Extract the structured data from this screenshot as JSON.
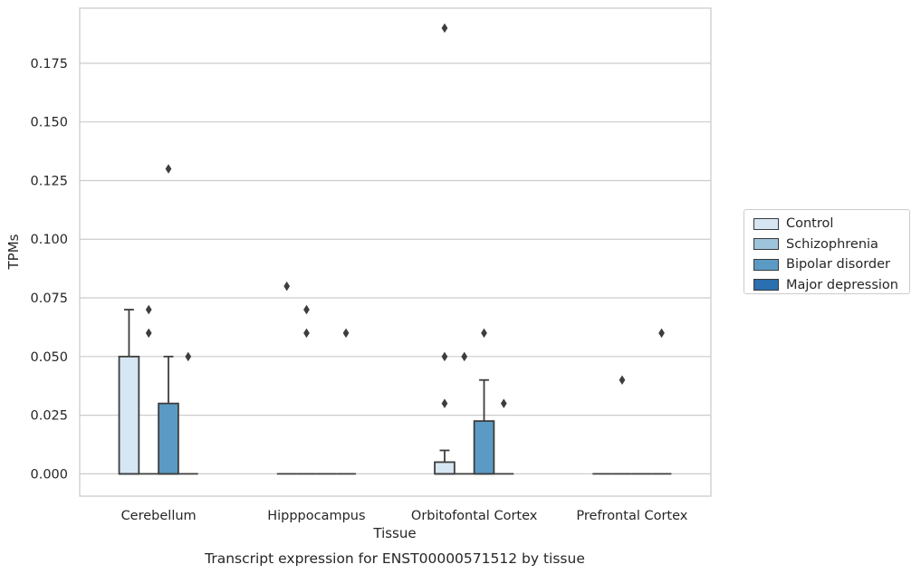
{
  "chart_data": {
    "type": "box",
    "title": "Transcript expression for ENST00000571512 by tissue",
    "xlabel": "Tissue",
    "ylabel": "TPMs",
    "ylim": [
      -0.0095,
      0.1985
    ],
    "yticks": [
      "0.000",
      "0.025",
      "0.050",
      "0.075",
      "0.100",
      "0.125",
      "0.150",
      "0.175"
    ],
    "ytick_values": [
      0,
      0.025,
      0.05,
      0.075,
      0.1,
      0.125,
      0.15,
      0.175
    ],
    "grid": true,
    "legend_placement": "right-outside",
    "categories": [
      "Cerebellum",
      "Hipppocampus",
      "Orbitofontal Cortex",
      "Prefrontal Cortex"
    ],
    "series": [
      {
        "name": "Control",
        "color": "#d6e6f3",
        "boxes": [
          {
            "q1": 0,
            "median": 0,
            "q3": 0.05,
            "whisker_low": 0,
            "whisker_high": 0.07,
            "outliers": []
          },
          {
            "q1": 0,
            "median": 0,
            "q3": 0,
            "whisker_low": 0,
            "whisker_high": 0,
            "outliers": [
              0.08
            ]
          },
          {
            "q1": 0,
            "median": 0,
            "q3": 0.005,
            "whisker_low": 0,
            "whisker_high": 0.01,
            "outliers": [
              0.03,
              0.05,
              0.19
            ]
          },
          {
            "q1": 0,
            "median": 0,
            "q3": 0,
            "whisker_low": 0,
            "whisker_high": 0,
            "outliers": []
          }
        ]
      },
      {
        "name": "Schizophrenia",
        "color": "#9ec4dc",
        "boxes": [
          {
            "q1": 0,
            "median": 0,
            "q3": 0,
            "whisker_low": 0,
            "whisker_high": 0,
            "outliers": [
              0.06,
              0.07
            ]
          },
          {
            "q1": 0,
            "median": 0,
            "q3": 0,
            "whisker_low": 0,
            "whisker_high": 0,
            "outliers": [
              0.06,
              0.07
            ]
          },
          {
            "q1": 0,
            "median": 0,
            "q3": 0,
            "whisker_low": 0,
            "whisker_high": 0,
            "outliers": [
              0.05
            ]
          },
          {
            "q1": 0,
            "median": 0,
            "q3": 0,
            "whisker_low": 0,
            "whisker_high": 0,
            "outliers": [
              0.04
            ]
          }
        ]
      },
      {
        "name": "Bipolar disorder",
        "color": "#5b9ac5",
        "boxes": [
          {
            "q1": 0,
            "median": 0,
            "q3": 0.03,
            "whisker_low": 0,
            "whisker_high": 0.05,
            "outliers": [
              0.13
            ]
          },
          {
            "q1": 0,
            "median": 0,
            "q3": 0,
            "whisker_low": 0,
            "whisker_high": 0,
            "outliers": []
          },
          {
            "q1": 0,
            "median": 0,
            "q3": 0.0225,
            "whisker_low": 0,
            "whisker_high": 0.04,
            "outliers": [
              0.06
            ]
          },
          {
            "q1": 0,
            "median": 0,
            "q3": 0,
            "whisker_low": 0,
            "whisker_high": 0,
            "outliers": []
          }
        ]
      },
      {
        "name": "Major depression",
        "color": "#2a6faf",
        "boxes": [
          {
            "q1": 0,
            "median": 0,
            "q3": 0,
            "whisker_low": 0,
            "whisker_high": 0,
            "outliers": [
              0.05
            ]
          },
          {
            "q1": 0,
            "median": 0,
            "q3": 0,
            "whisker_low": 0,
            "whisker_high": 0,
            "outliers": [
              0.06
            ]
          },
          {
            "q1": 0,
            "median": 0,
            "q3": 0,
            "whisker_low": 0,
            "whisker_high": 0,
            "outliers": [
              0.03
            ]
          },
          {
            "q1": 0,
            "median": 0,
            "q3": 0,
            "whisker_low": 0,
            "whisker_high": 0,
            "outliers": [
              0.06
            ]
          }
        ]
      }
    ]
  }
}
